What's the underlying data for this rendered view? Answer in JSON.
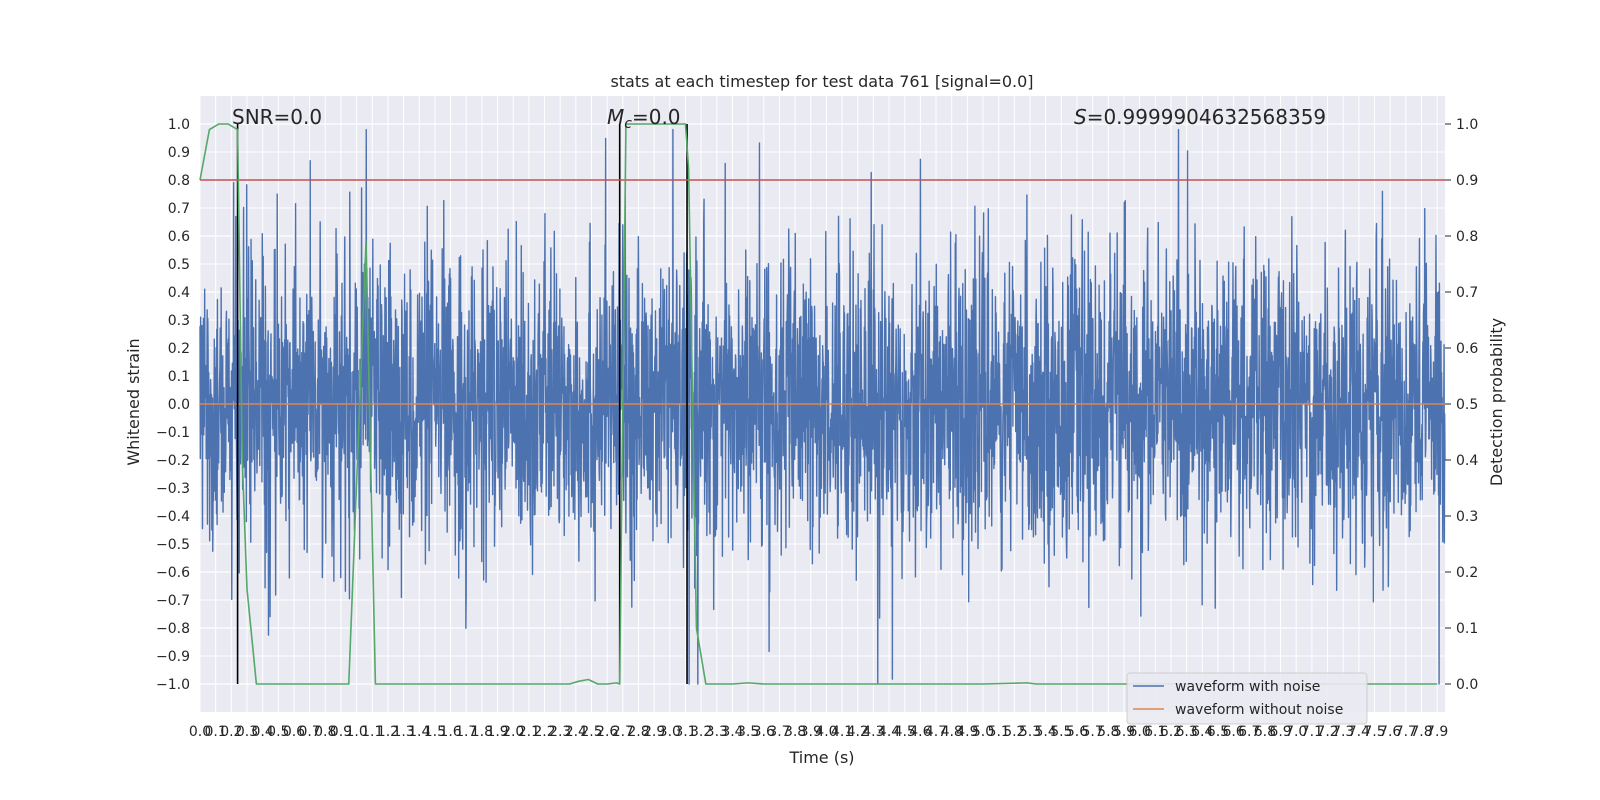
{
  "chart_data": {
    "type": "line",
    "title": "stats at each timestep for test data 761 [signal=0.0]",
    "xlabel": "Time (s)",
    "ylabel": "Whitened strain",
    "y2label": "Detection probability",
    "xlim": [
      0.0,
      7.95
    ],
    "ylim": [
      -1.1,
      1.1
    ],
    "y2lim": [
      -0.05,
      1.05
    ],
    "grid": true,
    "legend_position": "lower-right",
    "annotations": {
      "snr": "SNR=0.0",
      "mc_symbol": "M",
      "mc_sub": "c",
      "mc_value": "=0.0",
      "s_symbol": "S",
      "s_value": "=0.9999904632568359"
    },
    "xticks": [
      "0.0",
      "0.1",
      "0.2",
      "0.3",
      "0.4",
      "0.5",
      "0.6",
      "0.7",
      "0.8",
      "0.9",
      "1.0",
      "1.1",
      "1.2",
      "1.3",
      "1.4",
      "1.5",
      "1.6",
      "1.7",
      "1.8",
      "1.9",
      "2.0",
      "2.1",
      "2.2",
      "2.3",
      "2.4",
      "2.5",
      "2.6",
      "2.7",
      "2.8",
      "2.9",
      "3.0",
      "3.1",
      "3.2",
      "3.3",
      "3.4",
      "3.5",
      "3.6",
      "3.7",
      "3.8",
      "3.9",
      "4.0",
      "4.1",
      "4.2",
      "4.3",
      "4.4",
      "4.5",
      "4.6",
      "4.7",
      "4.8",
      "4.9",
      "5.0",
      "5.1",
      "5.2",
      "5.3",
      "5.4",
      "5.5",
      "5.6",
      "5.7",
      "5.8",
      "5.9",
      "6.0",
      "6.1",
      "6.2",
      "6.3",
      "6.4",
      "6.5",
      "6.6",
      "6.7",
      "6.8",
      "6.9",
      "7.0",
      "7.1",
      "7.2",
      "7.3",
      "7.4",
      "7.5",
      "7.6",
      "7.7",
      "7.8",
      "7.9"
    ],
    "yticks": [
      "1.0",
      "0.9",
      "0.8",
      "0.7",
      "0.6",
      "0.5",
      "0.4",
      "0.3",
      "0.2",
      "0.1",
      "0.0",
      "−0.1",
      "−0.2",
      "−0.3",
      "−0.4",
      "−0.5",
      "−0.6",
      "−0.7",
      "−0.8",
      "−0.9",
      "−1.0"
    ],
    "y2ticks": [
      "1.0",
      "0.9",
      "0.8",
      "0.7",
      "0.6",
      "0.5",
      "0.4",
      "0.3",
      "0.2",
      "0.1",
      "0.0"
    ],
    "threshold": 0.9,
    "event_lines_x": [
      0.24,
      2.68,
      3.11
    ],
    "series": [
      {
        "name": "waveform with noise",
        "color": "#4c72b0",
        "axis": "left"
      },
      {
        "name": "waveform without noise",
        "color": "#dd8452",
        "axis": "left",
        "values_constant": 0.0
      },
      {
        "color": "#55a868",
        "axis": "right",
        "x": [
          0.0,
          0.06,
          0.12,
          0.18,
          0.24,
          0.27,
          0.3,
          0.36,
          0.42,
          0.9,
          0.95,
          1.06,
          1.12,
          1.18,
          1.24,
          1.3,
          2.3,
          2.36,
          2.42,
          2.48,
          2.54,
          2.6,
          2.66,
          2.68,
          2.72,
          3.1,
          3.12,
          3.17,
          3.23,
          3.3,
          3.4,
          3.5,
          3.6,
          3.7,
          4.0,
          5.0,
          5.28,
          5.34,
          5.4,
          6.0,
          7.9
        ],
        "y": [
          0.9,
          0.99,
          1.0,
          1.0,
          0.99,
          0.4,
          0.17,
          0.0,
          0.0,
          0.0,
          0.0,
          0.79,
          0.0,
          0.0,
          0.0,
          0.0,
          0.0,
          0.0,
          0.005,
          0.008,
          0.0,
          0.0,
          0.002,
          0.0,
          1.0,
          1.0,
          0.92,
          0.1,
          0.0,
          0.0,
          0.0,
          0.002,
          0.0,
          0.0,
          0.0,
          0.0,
          0.002,
          0.0,
          0.0,
          0.0,
          0.0
        ]
      },
      {
        "color": "#c44e52",
        "axis": "right",
        "values_constant": 0.9
      }
    ],
    "legend": [
      "waveform with noise",
      "waveform without noise"
    ]
  }
}
